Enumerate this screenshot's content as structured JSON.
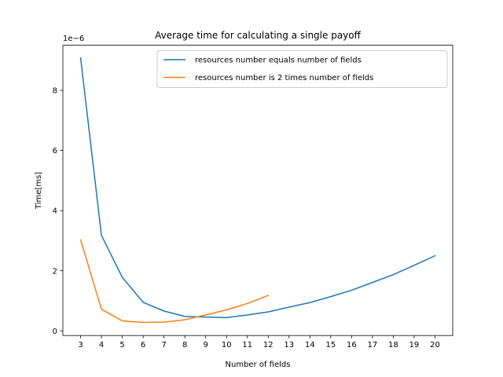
{
  "chart_data": {
    "type": "line",
    "title": "Average time for calculating a single payoff",
    "xlabel": "Number of fields",
    "ylabel": "Time[ms]",
    "y_offset_label": "1e−6",
    "xlim": [
      2.15,
      20.85
    ],
    "ylim": [
      -1.55e-07,
      9.5e-06
    ],
    "x_ticks": [
      3,
      4,
      5,
      6,
      7,
      8,
      9,
      10,
      11,
      12,
      13,
      14,
      15,
      16,
      17,
      18,
      19,
      20
    ],
    "y_ticks": [
      0,
      2,
      4,
      6,
      8
    ],
    "legend_position": "upper right",
    "grid": false,
    "series": [
      {
        "name": "resources number equals number of fields",
        "color": "#1f77b4",
        "x": [
          3,
          4,
          5,
          6,
          7,
          8,
          9,
          10,
          11,
          12,
          13,
          14,
          15,
          16,
          17,
          18,
          19,
          20
        ],
        "y": [
          9.08e-06,
          3.18e-06,
          1.78e-06,
          9.5e-07,
          6.6e-07,
          4.8e-07,
          4.6e-07,
          4.4e-07,
          5.3e-07,
          6.3e-07,
          7.9e-07,
          9.4e-07,
          1.14e-06,
          1.35e-06,
          1.61e-06,
          1.87e-06,
          2.18e-06,
          2.5e-06
        ]
      },
      {
        "name": "resources number is 2 times number of fields",
        "color": "#ff7f0e",
        "x": [
          3,
          4,
          5,
          6,
          7,
          8,
          9,
          10,
          11,
          12
        ],
        "y": [
          3.03e-06,
          7.2e-07,
          3.3e-07,
          2.8e-07,
          2.9e-07,
          3.7e-07,
          5.3e-07,
          7e-07,
          9.1e-07,
          1.18e-06
        ]
      }
    ]
  }
}
